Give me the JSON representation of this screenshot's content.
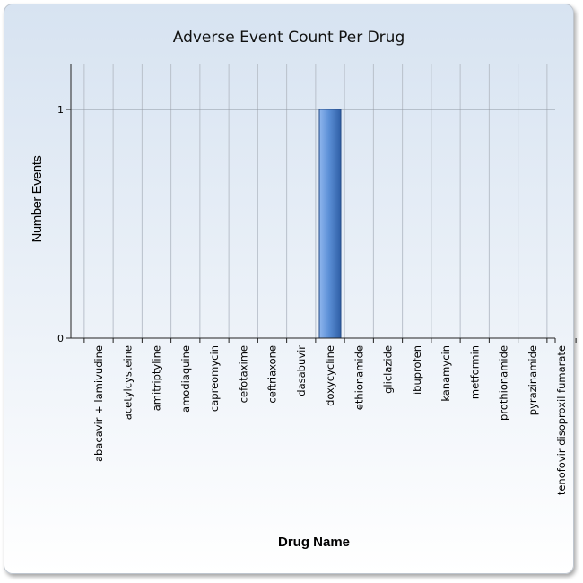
{
  "chart_data": {
    "type": "bar",
    "title": "Adverse Event Count Per Drug",
    "xlabel": "Drug Name",
    "ylabel": "Number Events",
    "categories": [
      "abacavir + lamivudine",
      "acetylcysteine",
      "amitriptyline",
      "amodiaquine",
      "capreomycin",
      "cefotaxime",
      "ceftriaxone",
      "dasabuvir",
      "doxycycline",
      "ethionamide",
      "gliclazide",
      "ibuprofen",
      "kanamycin",
      "metformin",
      "prothionamide",
      "pyrazinamide",
      "tenofovir disoproxil fumarate"
    ],
    "values": [
      0,
      0,
      0,
      0,
      0,
      0,
      0,
      0,
      1,
      0,
      0,
      0,
      0,
      0,
      0,
      0,
      0
    ],
    "yticks": [
      0,
      1
    ],
    "ylim": [
      0,
      1.2
    ],
    "grid": true,
    "legend": "none",
    "bar_color": "#5b8fd6"
  }
}
